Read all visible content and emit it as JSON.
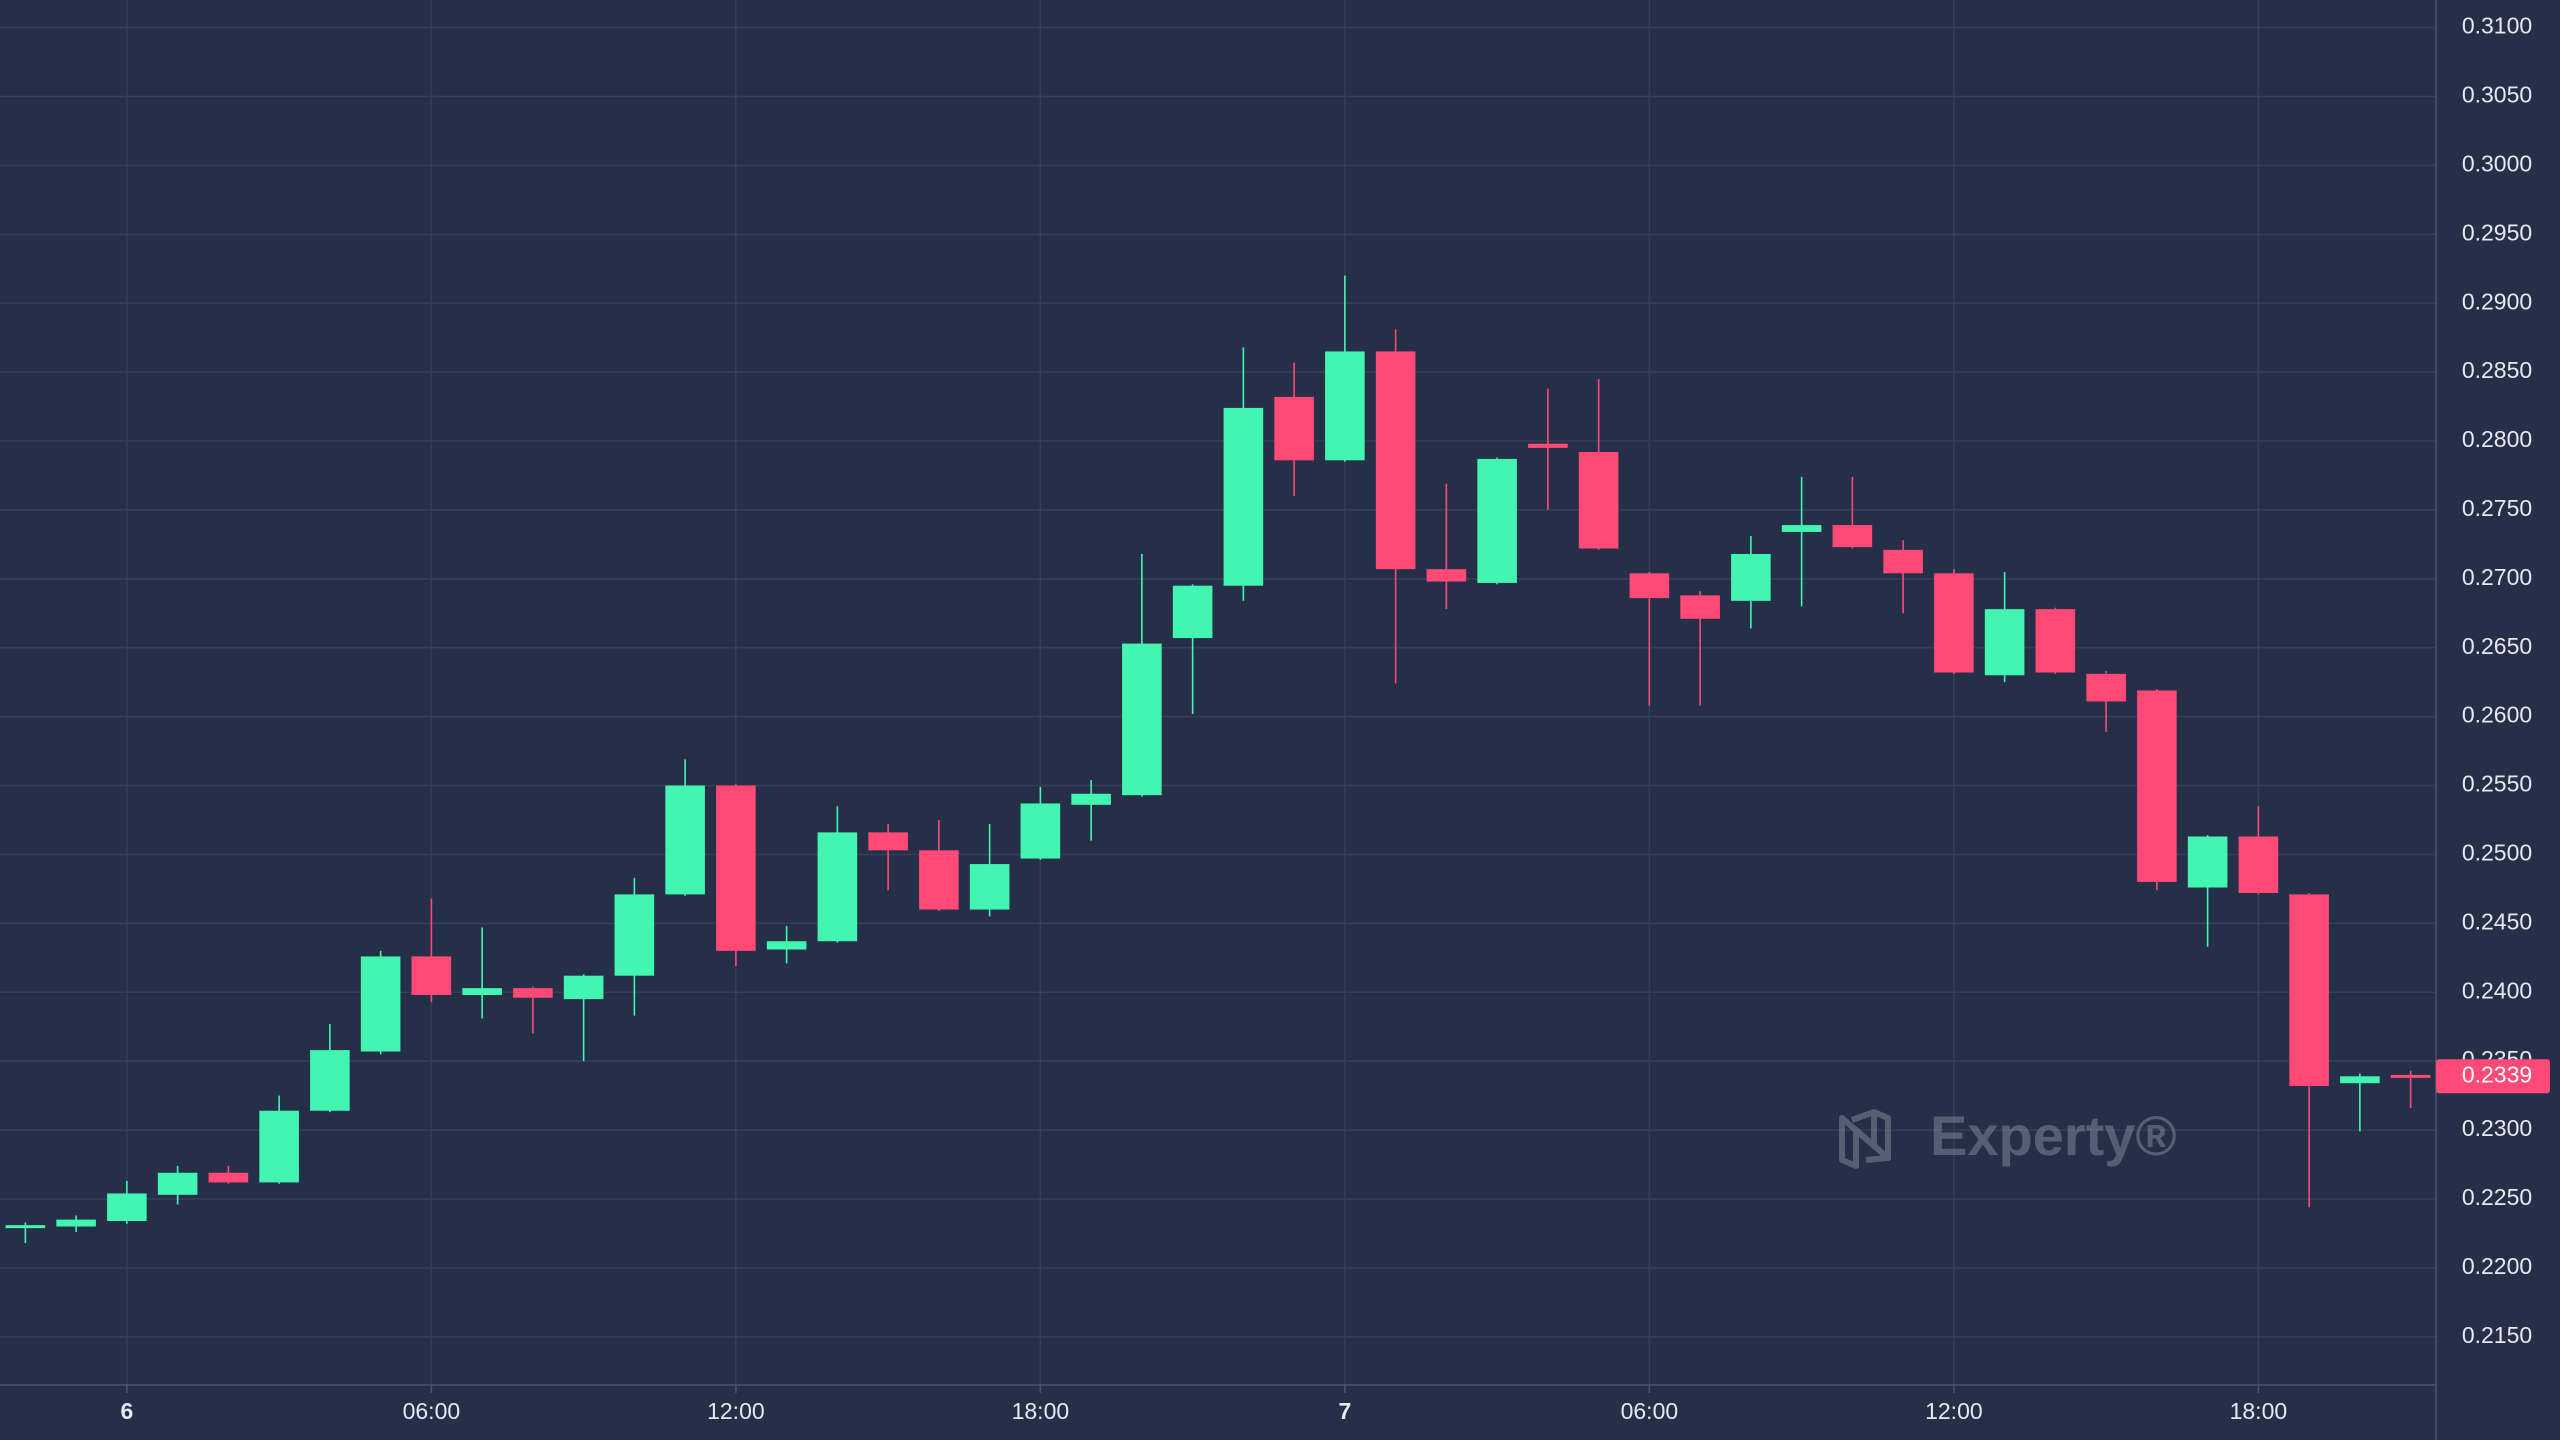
{
  "chart_data": {
    "type": "candlestick",
    "open": [
      0.2229,
      0.223,
      0.2234,
      0.2253,
      0.2269,
      0.2262,
      0.2314,
      0.2357,
      0.2426,
      0.2398,
      0.2403,
      0.2395,
      0.2412,
      0.2471,
      0.255,
      0.2431,
      0.2437,
      0.2516,
      0.2503,
      0.246,
      0.2497,
      0.2536,
      0.2543,
      0.2657,
      0.2695,
      0.2832,
      0.2786,
      0.2865,
      0.2707,
      0.2697,
      0.2798,
      0.2792,
      0.2704,
      0.2688,
      0.2684,
      0.2734,
      0.2739,
      0.2721,
      0.2704,
      0.263,
      0.2678,
      0.2631,
      0.2619,
      0.2476,
      0.2513,
      0.2471,
      0.2334,
      0.234
    ],
    "high": [
      0.2233,
      0.2238,
      0.2263,
      0.2274,
      0.2274,
      0.2325,
      0.2377,
      0.243,
      0.2468,
      0.2447,
      0.2404,
      0.2413,
      0.2483,
      0.2569,
      0.2551,
      0.2448,
      0.2535,
      0.2522,
      0.2525,
      0.2522,
      0.2549,
      0.2554,
      0.2718,
      0.2696,
      0.2868,
      0.2857,
      0.292,
      0.2881,
      0.2769,
      0.2788,
      0.2838,
      0.2845,
      0.2705,
      0.2691,
      0.2731,
      0.2774,
      0.2774,
      0.2728,
      0.2707,
      0.2705,
      0.2679,
      0.2633,
      0.262,
      0.2514,
      0.2535,
      0.2472,
      0.2341,
      0.2343
    ],
    "low": [
      0.2218,
      0.2226,
      0.2232,
      0.2246,
      0.2261,
      0.2261,
      0.2313,
      0.2355,
      0.2393,
      0.2381,
      0.237,
      0.235,
      0.2383,
      0.247,
      0.2419,
      0.2421,
      0.2436,
      0.2474,
      0.2459,
      0.2455,
      0.2496,
      0.251,
      0.2542,
      0.2602,
      0.2684,
      0.276,
      0.2785,
      0.2624,
      0.2678,
      0.2696,
      0.275,
      0.2721,
      0.2608,
      0.2608,
      0.2664,
      0.268,
      0.2722,
      0.2675,
      0.2631,
      0.2625,
      0.2631,
      0.2589,
      0.2474,
      0.2433,
      0.2471,
      0.2244,
      0.2299,
      0.2316
    ],
    "close": [
      0.2231,
      0.2235,
      0.2254,
      0.2269,
      0.2262,
      0.2314,
      0.2358,
      0.2426,
      0.2398,
      0.2403,
      0.2396,
      0.2412,
      0.2471,
      0.255,
      0.243,
      0.2437,
      0.2516,
      0.2503,
      0.246,
      0.2493,
      0.2537,
      0.2544,
      0.2653,
      0.2695,
      0.2824,
      0.2786,
      0.2865,
      0.2707,
      0.2698,
      0.2787,
      0.2795,
      0.2722,
      0.2686,
      0.2671,
      0.2718,
      0.2739,
      0.2723,
      0.2704,
      0.2632,
      0.2678,
      0.2632,
      0.2611,
      0.248,
      0.2513,
      0.2472,
      0.2332,
      0.2339,
      0.2339
    ],
    "up_color": "#42f5b0",
    "down_color": "#ff4976",
    "xlim": [
      -0.5,
      47.5
    ],
    "xticks": [
      {
        "value": 2,
        "label": "6"
      },
      {
        "value": 8,
        "label": "06:00"
      },
      {
        "value": 14,
        "label": "12:00"
      },
      {
        "value": 20,
        "label": "18:00"
      },
      {
        "value": 26,
        "label": "7"
      },
      {
        "value": 32,
        "label": "06:00"
      },
      {
        "value": 38,
        "label": "12:00"
      },
      {
        "value": 44,
        "label": "18:00"
      }
    ],
    "ylim": [
      0.2115,
      0.312
    ],
    "yticks": [
      {
        "value": 0.215,
        "label": "0.2150"
      },
      {
        "value": 0.22,
        "label": "0.2200"
      },
      {
        "value": 0.225,
        "label": "0.2250"
      },
      {
        "value": 0.23,
        "label": "0.2300"
      },
      {
        "value": 0.235,
        "label": "0.2350"
      },
      {
        "value": 0.24,
        "label": "0.2400"
      },
      {
        "value": 0.245,
        "label": "0.2450"
      },
      {
        "value": 0.25,
        "label": "0.2500"
      },
      {
        "value": 0.255,
        "label": "0.2550"
      },
      {
        "value": 0.26,
        "label": "0.2600"
      },
      {
        "value": 0.265,
        "label": "0.2650"
      },
      {
        "value": 0.27,
        "label": "0.2700"
      },
      {
        "value": 0.275,
        "label": "0.2750"
      },
      {
        "value": 0.28,
        "label": "0.2800"
      },
      {
        "value": 0.285,
        "label": "0.2850"
      },
      {
        "value": 0.29,
        "label": "0.2900"
      },
      {
        "value": 0.295,
        "label": "0.2950"
      },
      {
        "value": 0.3,
        "label": "0.3000"
      },
      {
        "value": 0.305,
        "label": "0.3050"
      },
      {
        "value": 0.31,
        "label": "0.3100"
      }
    ],
    "grid": true,
    "current_price": 0.2339,
    "watermark": "Experty®"
  }
}
